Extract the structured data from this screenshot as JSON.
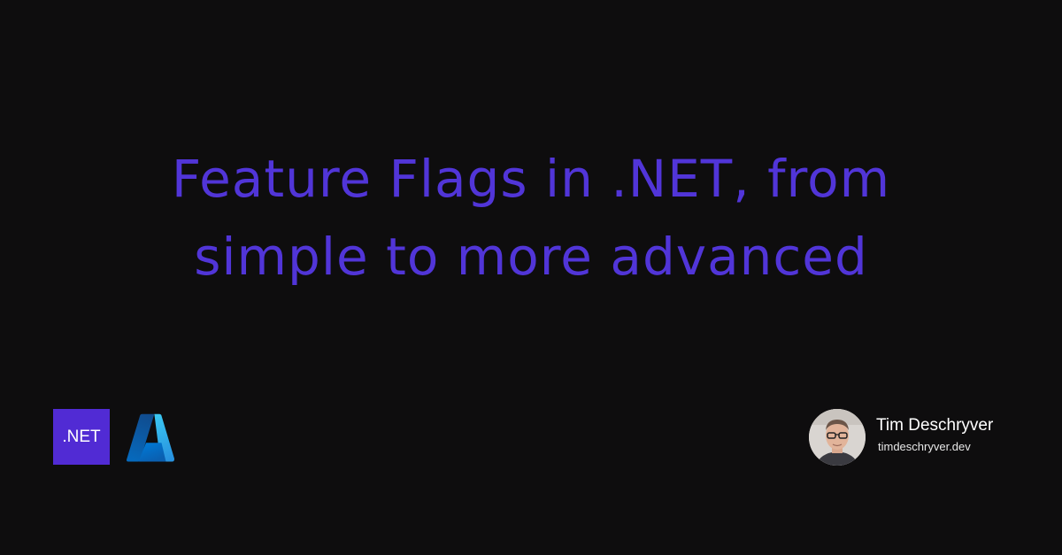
{
  "card": {
    "title_lines": [
      "Feature Flags in .NET, from",
      "simple to more advanced"
    ],
    "title_color": "#5135d8",
    "background_color": "#0e0d0e"
  },
  "logos": {
    "dotnet": {
      "text": ".NET",
      "background_color": "#512bd4",
      "icon": "dotnet-logo"
    },
    "azure": {
      "icon": "azure-logo"
    }
  },
  "author": {
    "name": "Tim Deschryver",
    "website": "timdeschryver.dev",
    "avatar_icon": "author-avatar"
  }
}
